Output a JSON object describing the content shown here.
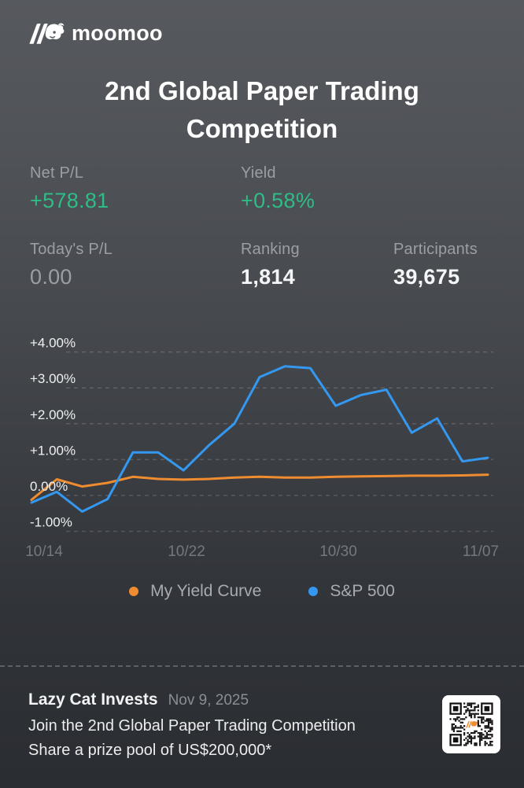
{
  "brand": {
    "name": "moomoo"
  },
  "title": {
    "line1": "2nd Global Paper Trading",
    "line2": "Competition"
  },
  "stats": {
    "net_pl": {
      "label": "Net P/L",
      "value": "+578.81"
    },
    "yield": {
      "label": "Yield",
      "value": "+0.58%"
    },
    "todays_pl": {
      "label": "Today's P/L",
      "value": "0.00"
    },
    "ranking": {
      "label": "Ranking",
      "value": "1,814"
    },
    "participants": {
      "label": "Participants",
      "value": "39,675"
    }
  },
  "colors": {
    "green": "#2dbd85",
    "orange": "#ef8c30",
    "blue": "#3498f0",
    "label_gray": "#9b9ea4",
    "axis_label": "#eef0f2",
    "xaxis_gray": "#75787e",
    "background_top": "#56595e",
    "background_bottom": "#2a2d32"
  },
  "chart_data": {
    "type": "line",
    "title": "",
    "xlabel": "",
    "ylabel": "",
    "x": [
      "10/14",
      "10/15",
      "10/16",
      "10/17",
      "10/20",
      "10/21",
      "10/22",
      "10/23",
      "10/24",
      "10/27",
      "10/28",
      "10/29",
      "10/30",
      "10/31",
      "11/03",
      "11/04",
      "11/05",
      "11/06",
      "11/07"
    ],
    "xtick_labels": [
      "10/14",
      "10/22",
      "10/30",
      "11/07"
    ],
    "xtick_indices": [
      0,
      6,
      12,
      18
    ],
    "yticks": [
      {
        "value": 4,
        "label": "+4.00%"
      },
      {
        "value": 3,
        "label": "+3.00%"
      },
      {
        "value": 2,
        "label": "+2.00%"
      },
      {
        "value": 1,
        "label": "+1.00%"
      },
      {
        "value": 0,
        "label": "0.00%"
      },
      {
        "value": -1,
        "label": "-1.00%"
      }
    ],
    "ylim": [
      -1.6,
      4.6
    ],
    "grid": "horizontal-dashed",
    "legend_position": "bottom",
    "series": [
      {
        "name": "My Yield Curve",
        "color": "#ef8c30",
        "values": [
          -0.12,
          0.45,
          0.25,
          0.35,
          0.52,
          0.46,
          0.44,
          0.46,
          0.5,
          0.52,
          0.5,
          0.5,
          0.52,
          0.53,
          0.54,
          0.55,
          0.55,
          0.56,
          0.58
        ]
      },
      {
        "name": "S&P 500",
        "color": "#3498f0",
        "values": [
          -0.2,
          0.1,
          -0.45,
          -0.1,
          1.2,
          1.2,
          0.7,
          1.4,
          2.0,
          3.3,
          3.6,
          3.55,
          2.5,
          2.8,
          2.95,
          1.75,
          2.15,
          0.95,
          1.05
        ]
      }
    ]
  },
  "footer": {
    "user": "Lazy Cat Invests",
    "date": "Nov 9, 2025",
    "line1": "Join the 2nd Global Paper Trading Competition",
    "line2": "Share a prize pool of US$200,000*"
  }
}
